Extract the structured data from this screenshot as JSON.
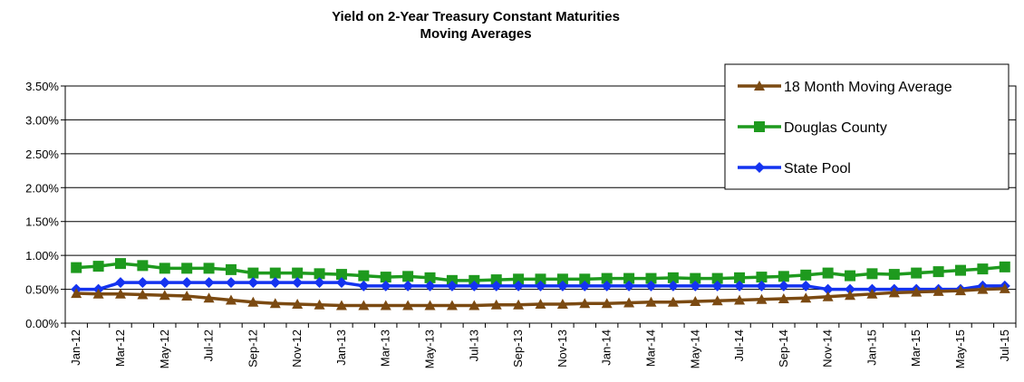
{
  "chart_data": {
    "type": "line",
    "title": "Yield on 2-Year Treasury Constant Maturities",
    "subtitle": "Moving Averages",
    "xlabel": "",
    "ylabel": "",
    "ylim": [
      0,
      0.035
    ],
    "yticks": [
      "0.00%",
      "0.50%",
      "1.00%",
      "1.50%",
      "2.00%",
      "2.50%",
      "3.00%",
      "3.50%"
    ],
    "xtick_labels": [
      "Jan-12",
      "Mar-12",
      "May-12",
      "Jul-12",
      "Sep-12",
      "Nov-12",
      "Jan-13",
      "Mar-13",
      "May-13",
      "Jul-13",
      "Sep-13",
      "Nov-13",
      "Jan-14",
      "Mar-14",
      "May-14",
      "Jul-14",
      "Sep-14",
      "Nov-14",
      "Jan-15",
      "Mar-15",
      "May-15",
      "Jul-15"
    ],
    "x": [
      "Jan-12",
      "Feb-12",
      "Mar-12",
      "Apr-12",
      "May-12",
      "Jun-12",
      "Jul-12",
      "Aug-12",
      "Sep-12",
      "Oct-12",
      "Nov-12",
      "Dec-12",
      "Jan-13",
      "Feb-13",
      "Mar-13",
      "Apr-13",
      "May-13",
      "Jun-13",
      "Jul-13",
      "Aug-13",
      "Sep-13",
      "Oct-13",
      "Nov-13",
      "Dec-13",
      "Jan-14",
      "Feb-14",
      "Mar-14",
      "Apr-14",
      "May-14",
      "Jun-14",
      "Jul-14",
      "Aug-14",
      "Sep-14",
      "Oct-14",
      "Nov-14",
      "Dec-14",
      "Jan-15",
      "Feb-15",
      "Mar-15",
      "Apr-15",
      "May-15",
      "Jun-15",
      "Jul-15"
    ],
    "grid": "horizontal",
    "legend_position": "top-right",
    "series": [
      {
        "name": "18 Month Moving Average",
        "color": "#7B4A12",
        "marker": "triangle",
        "values": [
          0.0044,
          0.0043,
          0.0043,
          0.0042,
          0.0041,
          0.004,
          0.0037,
          0.0034,
          0.0031,
          0.0029,
          0.0028,
          0.0027,
          0.0026,
          0.0026,
          0.0026,
          0.0026,
          0.0026,
          0.0026,
          0.0026,
          0.0027,
          0.0027,
          0.0028,
          0.0028,
          0.0029,
          0.0029,
          0.003,
          0.0031,
          0.0031,
          0.0032,
          0.0033,
          0.0034,
          0.0035,
          0.0036,
          0.0037,
          0.0039,
          0.0041,
          0.0043,
          0.0045,
          0.0046,
          0.0047,
          0.0048,
          0.005,
          0.0051
        ]
      },
      {
        "name": "Douglas County",
        "color": "#1E9A1E",
        "marker": "square",
        "values": [
          0.0082,
          0.0084,
          0.0088,
          0.0085,
          0.0081,
          0.0081,
          0.0081,
          0.0079,
          0.0074,
          0.0074,
          0.0074,
          0.0073,
          0.0072,
          0.007,
          0.0068,
          0.0069,
          0.0067,
          0.0063,
          0.0063,
          0.0064,
          0.0065,
          0.0065,
          0.0065,
          0.0065,
          0.0066,
          0.0066,
          0.0066,
          0.0067,
          0.0066,
          0.0066,
          0.0067,
          0.0068,
          0.0069,
          0.0071,
          0.0074,
          0.007,
          0.0073,
          0.0072,
          0.0074,
          0.0076,
          0.0078,
          0.008,
          0.0083
        ]
      },
      {
        "name": "State Pool",
        "color": "#1433F0",
        "marker": "diamond",
        "values": [
          0.005,
          0.005,
          0.006,
          0.006,
          0.006,
          0.006,
          0.006,
          0.006,
          0.006,
          0.006,
          0.006,
          0.006,
          0.006,
          0.0055,
          0.0055,
          0.0055,
          0.0055,
          0.0055,
          0.0055,
          0.0055,
          0.0055,
          0.0055,
          0.0055,
          0.0055,
          0.0055,
          0.0055,
          0.0055,
          0.0055,
          0.0055,
          0.0055,
          0.0055,
          0.0055,
          0.0055,
          0.0055,
          0.005,
          0.005,
          0.005,
          0.005,
          0.005,
          0.005,
          0.005,
          0.0055,
          0.0055
        ]
      }
    ]
  }
}
